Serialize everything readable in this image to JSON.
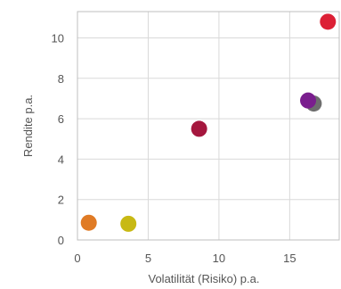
{
  "chart_data": {
    "type": "scatter",
    "title": "",
    "xlabel": "Volatilität (Risiko) p.a.",
    "ylabel": "Rendite p.a.",
    "xlim": [
      0,
      18.5
    ],
    "ylim": [
      0,
      11.3
    ],
    "xticks": [
      0,
      5,
      10,
      15
    ],
    "yticks": [
      0,
      2,
      4,
      6,
      8,
      10
    ],
    "grid": true,
    "legend": "none",
    "points": [
      {
        "x": 0.8,
        "y": 0.85,
        "color": "#e07b25"
      },
      {
        "x": 3.6,
        "y": 0.8,
        "color": "#c8b914"
      },
      {
        "x": 8.6,
        "y": 5.5,
        "color": "#a5173e"
      },
      {
        "x": 16.7,
        "y": 6.75,
        "color": "#6e6e6e"
      },
      {
        "x": 16.3,
        "y": 6.9,
        "color": "#7a1e8e"
      },
      {
        "x": 17.7,
        "y": 10.8,
        "color": "#dc2035"
      }
    ]
  }
}
